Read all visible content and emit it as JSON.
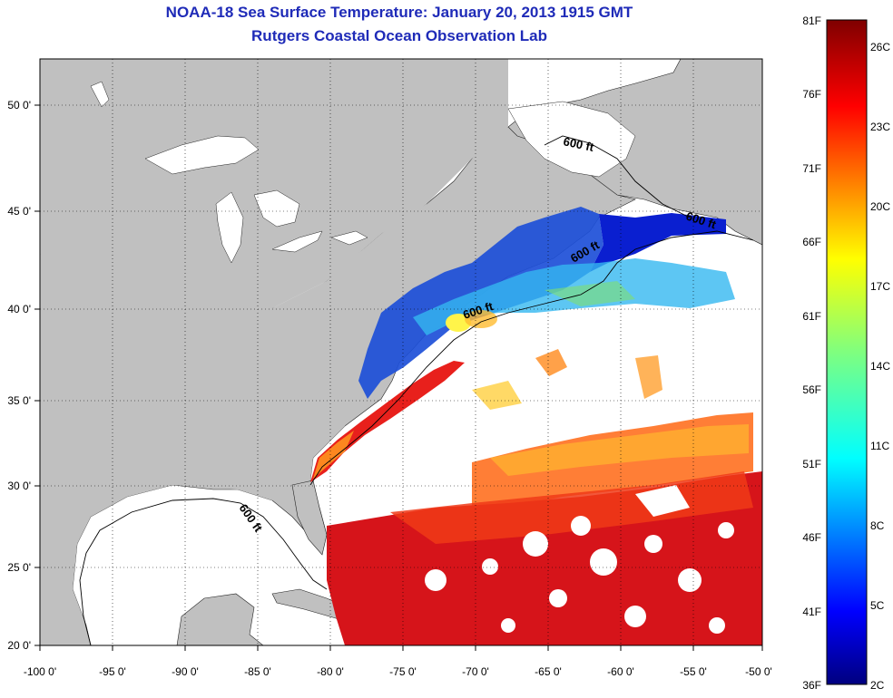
{
  "title": "NOAA-18 Sea Surface Temperature:  January 20, 2013 1915 GMT",
  "subtitle": "Rutgers Coastal Ocean Observation Lab",
  "map": {
    "lon_labels": [
      "-100 0'",
      "-95 0'",
      "-90 0'",
      "-85 0'",
      "-80 0'",
      "-75 0'",
      "-70 0'",
      "-65 0'",
      "-60 0'",
      "-55 0'",
      "-50 0'"
    ],
    "lat_labels": [
      "50 0'",
      "45 0'",
      "40 0'",
      "35 0'",
      "30 0'",
      "25 0'",
      "20 0'"
    ],
    "contour_labels": [
      "600 ft",
      "600 ft",
      "600 ft",
      "600 ft",
      "600 ft"
    ],
    "land_color": "#c0c0c0",
    "water_color": "#ffffff"
  },
  "colorbar": {
    "fahrenheit_labels": [
      "81F",
      "76F",
      "71F",
      "66F",
      "61F",
      "56F",
      "51F",
      "46F",
      "41F",
      "36F"
    ],
    "celsius_labels": [
      "26C",
      "23C",
      "20C",
      "17C",
      "14C",
      "11C",
      "8C",
      "5C",
      "2C"
    ],
    "colormap": "jet"
  }
}
